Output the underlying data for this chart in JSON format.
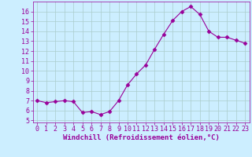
{
  "x": [
    0,
    1,
    2,
    3,
    4,
    5,
    6,
    7,
    8,
    9,
    10,
    11,
    12,
    13,
    14,
    15,
    16,
    17,
    18,
    19,
    20,
    21,
    22,
    23
  ],
  "y": [
    7.0,
    6.8,
    6.9,
    7.0,
    6.9,
    5.8,
    5.9,
    5.6,
    5.9,
    7.0,
    8.6,
    9.7,
    10.6,
    12.2,
    13.7,
    15.1,
    16.0,
    16.5,
    15.7,
    14.0,
    13.4,
    13.4,
    13.1,
    12.8
  ],
  "line_color": "#990099",
  "marker": "D",
  "marker_size": 2.5,
  "background_color": "#cceeff",
  "grid_color": "#aacccc",
  "xlabel": "Windchill (Refroidissement éolien,°C)",
  "xlabel_color": "#990099",
  "xlabel_fontsize": 6.5,
  "tick_color": "#990099",
  "tick_fontsize": 6,
  "ylim": [
    4.8,
    17.0
  ],
  "yticks": [
    5,
    6,
    7,
    8,
    9,
    10,
    11,
    12,
    13,
    14,
    15,
    16
  ],
  "xlim": [
    -0.5,
    23.5
  ],
  "xticks": [
    0,
    1,
    2,
    3,
    4,
    5,
    6,
    7,
    8,
    9,
    10,
    11,
    12,
    13,
    14,
    15,
    16,
    17,
    18,
    19,
    20,
    21,
    22,
    23
  ]
}
